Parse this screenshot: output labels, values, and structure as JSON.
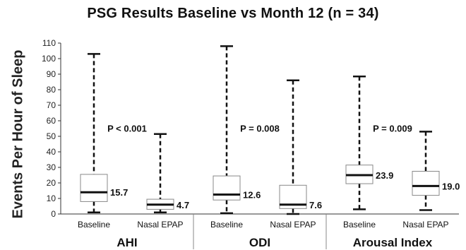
{
  "chart_data": {
    "type": "box",
    "title": "PSG Results Baseline vs Month 12 (n = 34)",
    "ylabel": "Events Per Hour of Sleep",
    "ylim": [
      0,
      110
    ],
    "yticks": [
      0,
      10,
      20,
      30,
      40,
      50,
      60,
      70,
      80,
      90,
      100,
      110
    ],
    "groups": [
      {
        "name": "AHI",
        "p_value": "P < 0.001",
        "boxes": [
          {
            "category": "Baseline",
            "min": 1,
            "q1": 8,
            "median": 14,
            "q3": 25.5,
            "max": 103,
            "label": "15.7"
          },
          {
            "category": "Nasal EPAP",
            "min": 1,
            "q1": 3,
            "median": 6,
            "q3": 9.5,
            "max": 51.5,
            "label": "4.7"
          }
        ]
      },
      {
        "name": "ODI",
        "p_value": "P = 0.008",
        "boxes": [
          {
            "category": "Baseline",
            "min": 0.5,
            "q1": 9,
            "median": 12.5,
            "q3": 24.5,
            "max": 108,
            "label": "12.6"
          },
          {
            "category": "Nasal EPAP",
            "min": 0,
            "q1": 3.5,
            "median": 6,
            "q3": 18.5,
            "max": 86,
            "label": "7.6"
          }
        ]
      },
      {
        "name": "Arousal Index",
        "p_value": "P = 0.009",
        "boxes": [
          {
            "category": "Baseline",
            "min": 3,
            "q1": 19.5,
            "median": 25,
            "q3": 31.5,
            "max": 88.5,
            "label": "23.9"
          },
          {
            "category": "Nasal EPAP",
            "min": 2.5,
            "q1": 12,
            "median": 18,
            "q3": 27.5,
            "max": 53,
            "label": "19.0"
          }
        ]
      }
    ],
    "grid": false
  }
}
